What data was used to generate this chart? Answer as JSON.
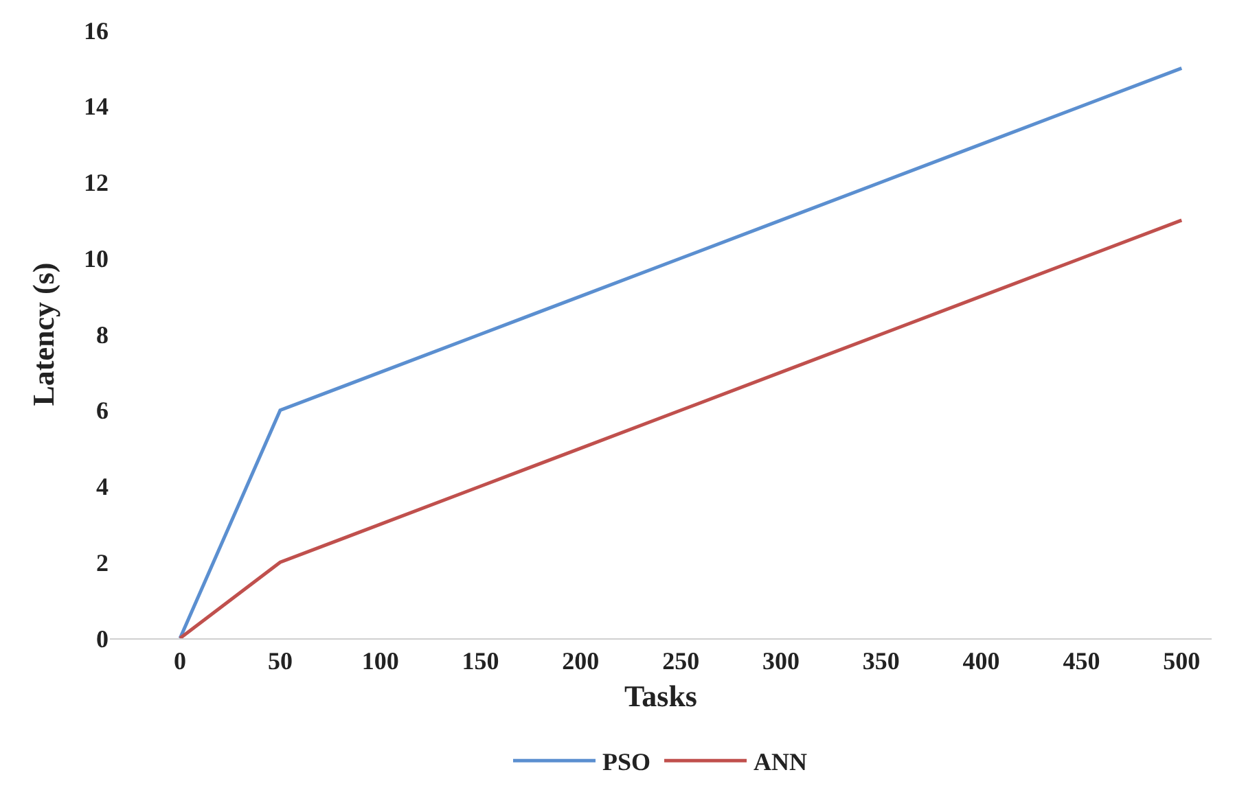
{
  "chart_data": {
    "type": "line",
    "xlabel": "Tasks",
    "ylabel": "Latency (s)",
    "categories": [
      "0",
      "50",
      "100",
      "150",
      "200",
      "250",
      "300",
      "350",
      "400",
      "450",
      "500"
    ],
    "series": [
      {
        "name": "PSO",
        "color": "#5b8fd0",
        "values": [
          0,
          6,
          7,
          8,
          9,
          10,
          11,
          12,
          13,
          14,
          15
        ]
      },
      {
        "name": "ANN",
        "color": "#c0504d",
        "values": [
          0,
          2,
          3,
          4,
          5,
          6,
          7,
          8,
          9,
          10,
          11
        ]
      }
    ],
    "ylim": [
      0,
      16
    ],
    "yticks": [
      0,
      2,
      4,
      6,
      8,
      10,
      12,
      14,
      16
    ],
    "legend": "bottom",
    "marker": "none",
    "line_style": "solid"
  }
}
